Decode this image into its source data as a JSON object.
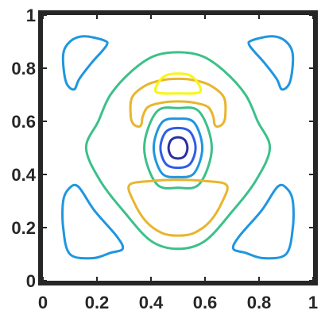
{
  "chart_data": {
    "type": "contour",
    "title": "",
    "xlabel": "",
    "ylabel": "",
    "xlim": [
      0,
      1
    ],
    "ylim": [
      0,
      1
    ],
    "grid": false,
    "legend": "none",
    "x_ticks": [
      "0",
      "0.2",
      "0.4",
      "0.6",
      "0.8",
      "1"
    ],
    "y_ticks": [
      "0",
      "0.2",
      "0.4",
      "0.6",
      "0.8",
      "1"
    ],
    "colormap": "parula",
    "contours": [
      {
        "level_index": 1,
        "color": "#2a2f9e",
        "paths": [
          [
            [
              0.5,
              0.54
            ],
            [
              0.525,
              0.53
            ],
            [
              0.535,
              0.5
            ],
            [
              0.525,
              0.47
            ],
            [
              0.5,
              0.46
            ],
            [
              0.475,
              0.47
            ],
            [
              0.465,
              0.5
            ],
            [
              0.475,
              0.53
            ]
          ]
        ]
      },
      {
        "level_index": 2,
        "color": "#2f5ee6",
        "paths": [
          [
            [
              0.5,
              0.575
            ],
            [
              0.545,
              0.56
            ],
            [
              0.565,
              0.5
            ],
            [
              0.545,
              0.44
            ],
            [
              0.5,
              0.425
            ],
            [
              0.455,
              0.44
            ],
            [
              0.435,
              0.5
            ],
            [
              0.455,
              0.56
            ]
          ]
        ]
      },
      {
        "level_index": 3,
        "color": "#1f96e0",
        "paths": [
          [
            [
              0.5,
              0.61
            ],
            [
              0.56,
              0.595
            ],
            [
              0.59,
              0.5
            ],
            [
              0.56,
              0.405
            ],
            [
              0.5,
              0.39
            ],
            [
              0.44,
              0.405
            ],
            [
              0.41,
              0.5
            ],
            [
              0.44,
              0.595
            ]
          ],
          [
            [
              0.15,
              0.92
            ],
            [
              0.225,
              0.905
            ],
            [
              0.235,
              0.885
            ],
            [
              0.18,
              0.82
            ],
            [
              0.135,
              0.76
            ],
            [
              0.115,
              0.72
            ],
            [
              0.085,
              0.75
            ],
            [
              0.075,
              0.85
            ],
            [
              0.1,
              0.9
            ]
          ],
          [
            [
              0.85,
              0.92
            ],
            [
              0.9,
              0.9
            ],
            [
              0.925,
              0.85
            ],
            [
              0.915,
              0.75
            ],
            [
              0.885,
              0.72
            ],
            [
              0.865,
              0.76
            ],
            [
              0.82,
              0.82
            ],
            [
              0.765,
              0.885
            ],
            [
              0.775,
              0.905
            ]
          ],
          [
            [
              0.1,
              0.1
            ],
            [
              0.185,
              0.085
            ],
            [
              0.25,
              0.105
            ],
            [
              0.295,
              0.12
            ],
            [
              0.275,
              0.165
            ],
            [
              0.19,
              0.265
            ],
            [
              0.13,
              0.355
            ],
            [
              0.095,
              0.345
            ],
            [
              0.075,
              0.3
            ],
            [
              0.075,
              0.2
            ]
          ],
          [
            [
              0.9,
              0.1
            ],
            [
              0.815,
              0.085
            ],
            [
              0.75,
              0.105
            ],
            [
              0.705,
              0.12
            ],
            [
              0.725,
              0.165
            ],
            [
              0.81,
              0.265
            ],
            [
              0.87,
              0.355
            ],
            [
              0.905,
              0.345
            ],
            [
              0.925,
              0.3
            ],
            [
              0.925,
              0.2
            ]
          ]
        ]
      },
      {
        "level_index": 4,
        "color": "#3cc08a",
        "paths": [
          [
            [
              0.5,
              0.65
            ],
            [
              0.58,
              0.635
            ],
            [
              0.625,
              0.5
            ],
            [
              0.58,
              0.365
            ],
            [
              0.5,
              0.35
            ],
            [
              0.42,
              0.365
            ],
            [
              0.375,
              0.5
            ],
            [
              0.42,
              0.635
            ]
          ],
          [
            [
              0.5,
              0.86
            ],
            [
              0.59,
              0.845
            ],
            [
              0.67,
              0.79
            ],
            [
              0.75,
              0.7
            ],
            [
              0.795,
              0.6
            ],
            [
              0.84,
              0.5
            ],
            [
              0.79,
              0.38
            ],
            [
              0.7,
              0.26
            ],
            [
              0.6,
              0.15
            ],
            [
              0.5,
              0.12
            ],
            [
              0.4,
              0.15
            ],
            [
              0.3,
              0.26
            ],
            [
              0.21,
              0.38
            ],
            [
              0.16,
              0.5
            ],
            [
              0.205,
              0.6
            ],
            [
              0.25,
              0.7
            ],
            [
              0.33,
              0.79
            ],
            [
              0.41,
              0.845
            ]
          ]
        ]
      },
      {
        "level_index": 5,
        "color": "#e8b52e",
        "paths": [
          [
            [
              0.325,
              0.62
            ],
            [
              0.33,
              0.69
            ],
            [
              0.38,
              0.735
            ],
            [
              0.44,
              0.755
            ],
            [
              0.5,
              0.76
            ],
            [
              0.56,
              0.755
            ],
            [
              0.62,
              0.735
            ],
            [
              0.67,
              0.69
            ],
            [
              0.675,
              0.62
            ],
            [
              0.665,
              0.59
            ],
            [
              0.645,
              0.58
            ],
            [
              0.635,
              0.59
            ],
            [
              0.63,
              0.62
            ],
            [
              0.61,
              0.655
            ],
            [
              0.56,
              0.67
            ],
            [
              0.5,
              0.675
            ],
            [
              0.44,
              0.67
            ],
            [
              0.39,
              0.655
            ],
            [
              0.37,
              0.62
            ],
            [
              0.365,
              0.59
            ],
            [
              0.355,
              0.58
            ],
            [
              0.335,
              0.59
            ]
          ],
          [
            [
              0.32,
              0.36
            ],
            [
              0.395,
              0.375
            ],
            [
              0.5,
              0.38
            ],
            [
              0.605,
              0.375
            ],
            [
              0.68,
              0.36
            ],
            [
              0.665,
              0.3
            ],
            [
              0.62,
              0.225
            ],
            [
              0.56,
              0.18
            ],
            [
              0.5,
              0.17
            ],
            [
              0.44,
              0.18
            ],
            [
              0.38,
              0.225
            ],
            [
              0.335,
              0.3
            ]
          ]
        ]
      },
      {
        "level_index": 6,
        "color": "#f7f712",
        "paths": [
          [
            [
              0.42,
              0.71
            ],
            [
              0.43,
              0.75
            ],
            [
              0.46,
              0.775
            ],
            [
              0.5,
              0.78
            ],
            [
              0.54,
              0.775
            ],
            [
              0.57,
              0.75
            ],
            [
              0.58,
              0.71
            ],
            [
              0.5,
              0.705
            ]
          ]
        ]
      }
    ]
  }
}
